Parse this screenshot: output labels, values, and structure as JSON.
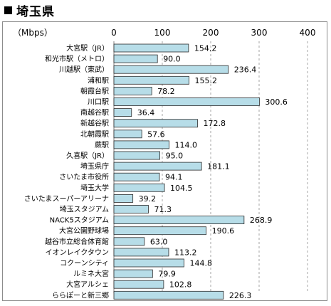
{
  "header": {
    "title": "埼玉県"
  },
  "chart_data": {
    "type": "bar",
    "orientation": "horizontal",
    "title": "埼玉県",
    "unit_label": "（Mbps）",
    "xlim": [
      0,
      400
    ],
    "xticks": [
      "0",
      "100",
      "200",
      "300",
      "400"
    ],
    "grid": "dashed vertical",
    "bar_color": "#b7dde8",
    "bar_edge_color": "#2a2a2a",
    "categories": [
      "大宮駅（JR）",
      "和光市駅（メトロ）",
      "川越駅（東武）",
      "浦和駅",
      "朝霞台駅",
      "川口駅",
      "南越谷駅",
      "新越谷駅",
      "北朝霞駅",
      "蕨駅",
      "久喜駅（JR）",
      "埼玉県庁",
      "さいたま市役所",
      "埼玉大学",
      "さいたまスーパーアリーナ",
      "埼玉スタジアム",
      "NACK5スタジアム",
      "大宮公園野球場",
      "越谷市立総合体育館",
      "イオンレイクタウン",
      "コクーンシティ",
      "ルミネ大宮",
      "大宮アルシェ",
      "ららぽーと新三郷"
    ],
    "values": [
      154.2,
      90.0,
      236.4,
      155.2,
      78.2,
      300.6,
      36.4,
      172.8,
      57.6,
      114.0,
      95.0,
      181.1,
      94.1,
      104.5,
      39.2,
      71.3,
      268.9,
      190.6,
      63.0,
      113.2,
      144.8,
      79.9,
      102.8,
      226.3
    ],
    "value_labels": [
      "154.2",
      "90.0",
      "236.4",
      "155.2",
      "78.2",
      "300.6",
      "36.4",
      "172.8",
      "57.6",
      "114.0",
      "95.0",
      "181.1",
      "94.1",
      "104.5",
      "39.2",
      "71.3",
      "268.9",
      "190.6",
      "63.0",
      "113.2",
      "144.8",
      "79.9",
      "102.8",
      "226.3"
    ]
  }
}
